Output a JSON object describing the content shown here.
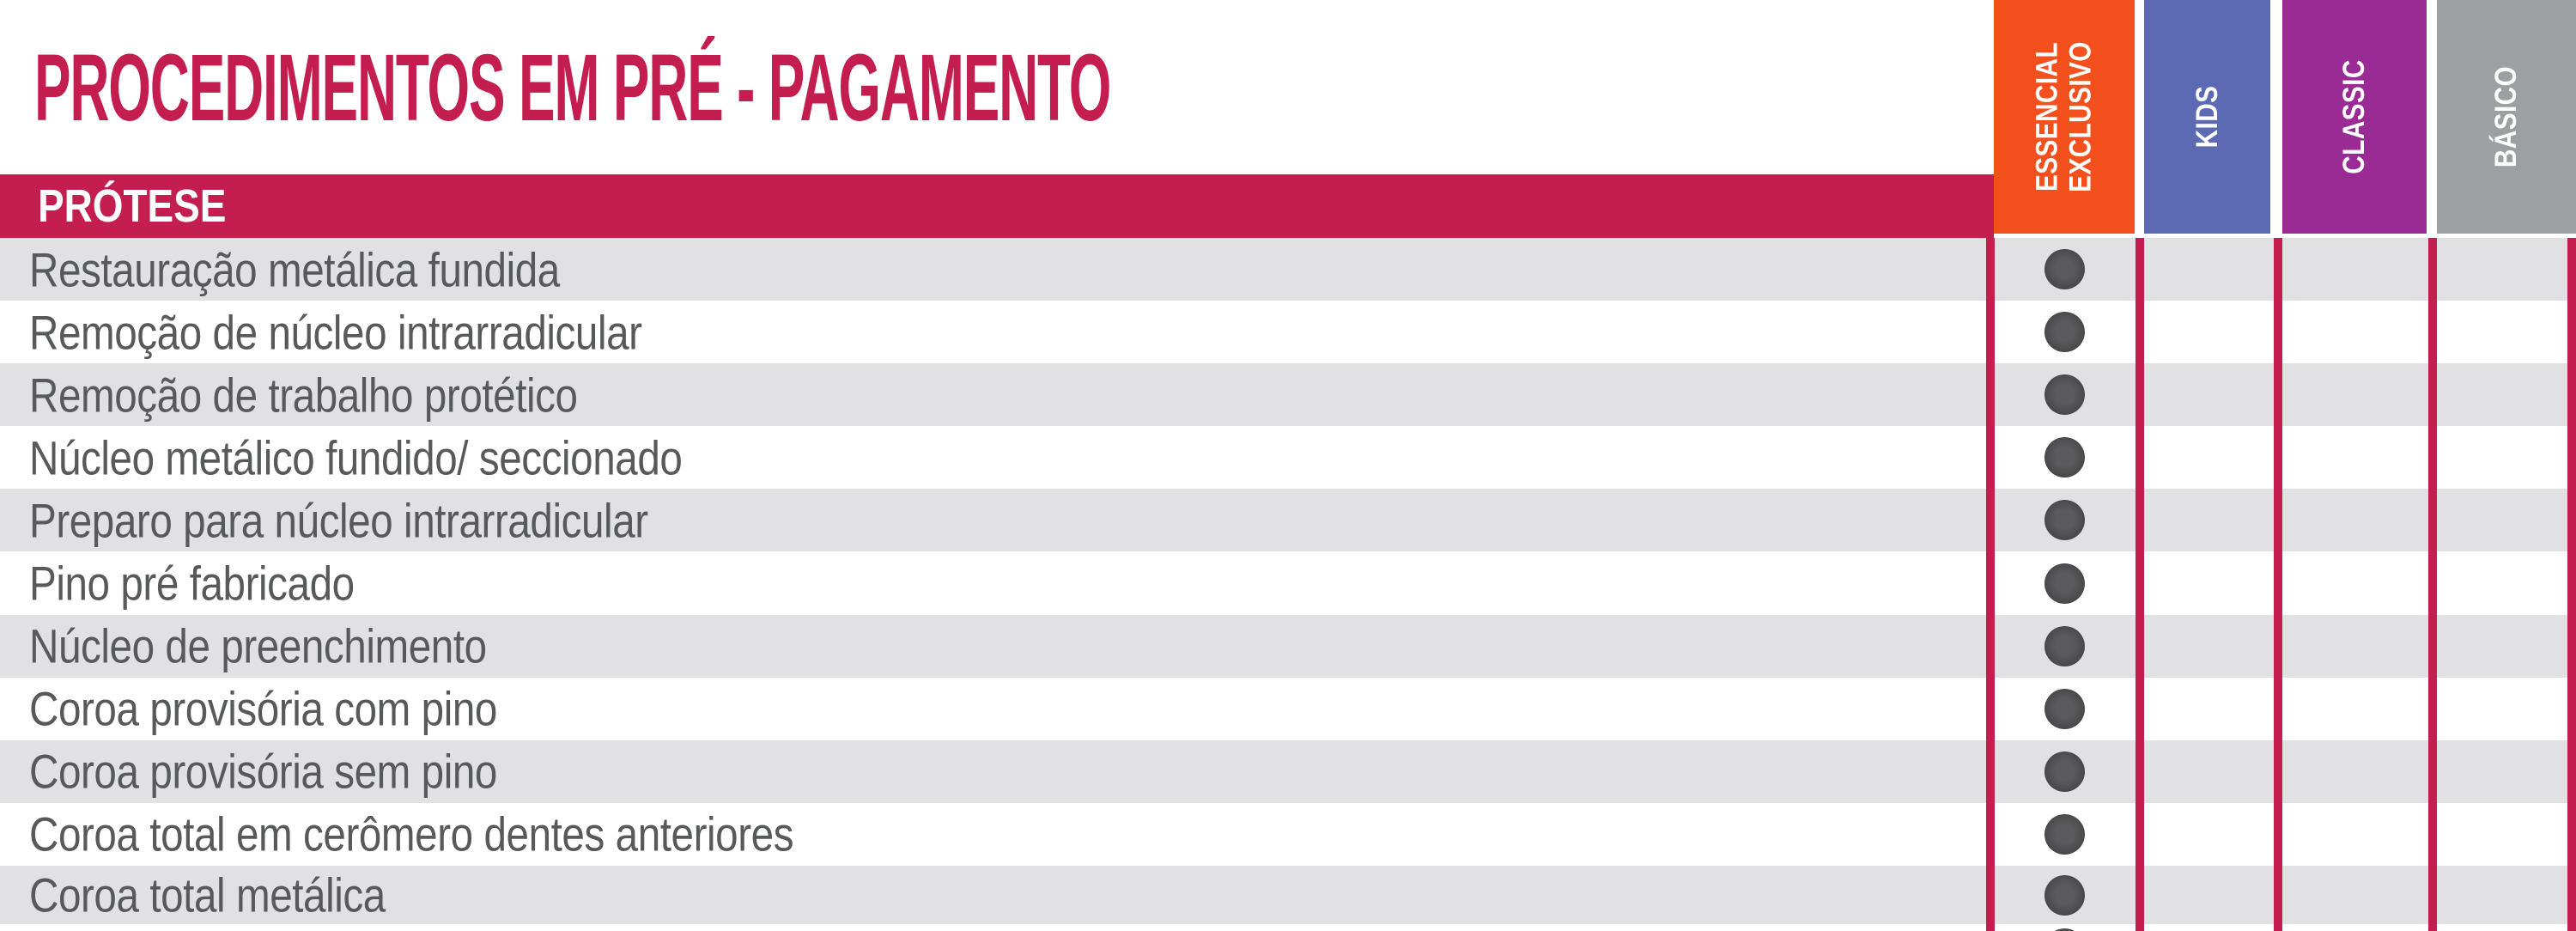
{
  "title": "PROCEDIMENTOS EM PRÉ - PAGAMENTO",
  "section": {
    "label": "PRÓTESE"
  },
  "colors": {
    "accent_crimson": "#C31E4F",
    "row_gray": "#E1E1E3",
    "row_white": "#FFFFFF",
    "label_gray": "#58595B",
    "dot_outer": "#474749",
    "dot_inner": "#5B5B5E"
  },
  "plans": [
    {
      "id": "essencial-exclusivo",
      "label": "ESSENCIAL\nEXCLUSIVO",
      "color": "#F4501E"
    },
    {
      "id": "kids",
      "label": "KIDS",
      "color": "#5B6AB3"
    },
    {
      "id": "classic",
      "label": "CLASSIC",
      "color": "#9A2B94"
    },
    {
      "id": "basico",
      "label": "BÁSICO",
      "color": "#9DA0A3"
    }
  ],
  "procedures": [
    {
      "label": "Restauração metálica fundida",
      "coverage": [
        true,
        false,
        false,
        false
      ]
    },
    {
      "label": "Remoção de núcleo intrarradicular",
      "coverage": [
        true,
        false,
        false,
        false
      ]
    },
    {
      "label": "Remoção de trabalho protético",
      "coverage": [
        true,
        false,
        false,
        false
      ]
    },
    {
      "label": "Núcleo metálico fundido/ seccionado",
      "coverage": [
        true,
        false,
        false,
        false
      ]
    },
    {
      "label": "Preparo para núcleo intrarradicular",
      "coverage": [
        true,
        false,
        false,
        false
      ]
    },
    {
      "label": "Pino pré fabricado",
      "coverage": [
        true,
        false,
        false,
        false
      ]
    },
    {
      "label": "Núcleo de preenchimento",
      "coverage": [
        true,
        false,
        false,
        false
      ]
    },
    {
      "label": "Coroa provisória com pino",
      "coverage": [
        true,
        false,
        false,
        false
      ]
    },
    {
      "label": "Coroa provisória sem pino",
      "coverage": [
        true,
        false,
        false,
        false
      ]
    },
    {
      "label": "Coroa total em cerômero dentes anteriores",
      "coverage": [
        true,
        false,
        false,
        false
      ]
    },
    {
      "label": "Coroa total metálica",
      "coverage": [
        true,
        false,
        false,
        false
      ]
    }
  ],
  "partial_bottom_row": {
    "coverage": [
      true,
      false,
      false,
      false
    ]
  }
}
